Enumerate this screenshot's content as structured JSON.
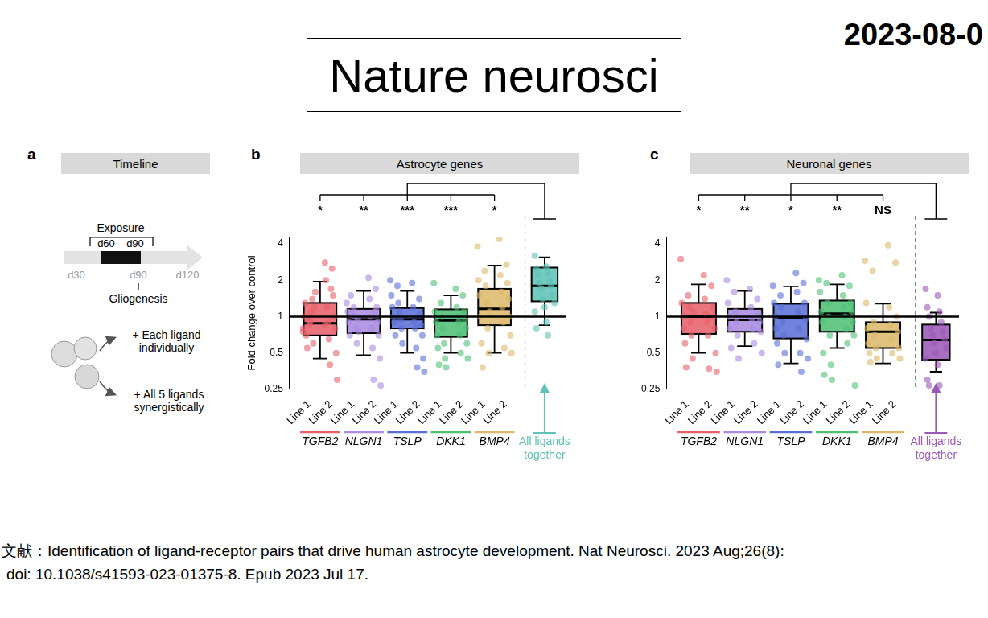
{
  "slide_title": "Nature neurosci",
  "date": "2023-08-0",
  "panel_a": {
    "label": "a",
    "title": "Timeline",
    "exposure": "Exposure",
    "exposure_start": "d60",
    "exposure_end": "d90",
    "axis_labels": [
      "d30",
      "d90",
      "d120"
    ],
    "event": "Gliogenesis",
    "conditions": [
      "+ Each ligand individually",
      "+ All 5 ligands synergistically"
    ]
  },
  "chart_data": [
    {
      "type": "box",
      "panel": "b",
      "title": "Astrocyte genes",
      "y_label": "Fold change over control",
      "log": "y",
      "grid": false,
      "ylim": [
        0.25,
        4.6
      ],
      "yticks": [
        0.25,
        0.5,
        1,
        2,
        4
      ],
      "reference_line": 1,
      "categories": [
        "Line 1",
        "Line 2",
        "Line 1",
        "Line 2",
        "Line 1",
        "Line 2",
        "Line 1",
        "Line 2",
        "Line 1",
        "Line 2",
        null
      ],
      "groups": [
        {
          "name": "TGFB2",
          "color": "#e8606a",
          "significance": "*",
          "box": {
            "whisker_low": 0.45,
            "q1": 0.7,
            "median": 0.88,
            "q3": 1.3,
            "whisker_high": 1.95
          },
          "points": [
            [
              0.8,
              0.9,
              1.0,
              1.1,
              1.3,
              1.4,
              0.7,
              0.6,
              0.55,
              1.2,
              0.95,
              1.6,
              0.85,
              0.75
            ],
            [
              2.8,
              2.5,
              2.0,
              1.5,
              1.2,
              1.0,
              0.9,
              0.8,
              0.65,
              0.5,
              0.4,
              0.3,
              1.7,
              0.85
            ]
          ]
        },
        {
          "name": "NLGN1",
          "color": "#a98be0",
          "significance": "**",
          "box": {
            "whisker_low": 0.48,
            "q1": 0.73,
            "median": 0.95,
            "q3": 1.16,
            "whisker_high": 1.63
          },
          "points": [
            [
              1.3,
              1.2,
              1.1,
              1.0,
              0.9,
              0.8,
              0.7,
              0.6,
              1.5,
              0.95,
              1.05,
              0.75
            ],
            [
              2.1,
              1.7,
              1.4,
              1.2,
              1.0,
              0.9,
              0.8,
              0.7,
              0.55,
              0.45,
              0.3,
              0.27,
              1.1
            ]
          ]
        },
        {
          "name": "TSLP",
          "color": "#5a6fd6",
          "significance": "***",
          "box": {
            "whisker_low": 0.5,
            "q1": 0.8,
            "median": 0.95,
            "q3": 1.18,
            "whisker_high": 1.63
          },
          "points": [
            [
              2.0,
              1.8,
              1.5,
              1.3,
              1.2,
              1.1,
              1.0,
              0.95,
              0.9,
              0.8,
              0.7,
              0.6
            ],
            [
              1.9,
              1.4,
              1.2,
              1.05,
              0.9,
              0.85,
              0.8,
              0.7,
              0.55,
              0.45,
              0.38,
              0.35
            ]
          ]
        },
        {
          "name": "DKK1",
          "color": "#4fbf74",
          "significance": "***",
          "box": {
            "whisker_low": 0.5,
            "q1": 0.68,
            "median": 0.93,
            "q3": 1.15,
            "whisker_high": 1.5
          },
          "points": [
            [
              1.9,
              1.3,
              1.1,
              1.0,
              0.9,
              0.8,
              0.7,
              0.6,
              0.55,
              0.45,
              0.4,
              0.38
            ],
            [
              1.7,
              1.5,
              1.2,
              1.1,
              1.0,
              0.95,
              0.9,
              0.8,
              0.7,
              0.6,
              0.5,
              0.45
            ]
          ]
        },
        {
          "name": "BMP4",
          "color": "#dcb96b",
          "significance": "*",
          "box": {
            "whisker_low": 0.5,
            "q1": 0.85,
            "median": 1.16,
            "q3": 1.7,
            "whisker_high": 2.65
          },
          "points": [
            [
              3.8,
              2.4,
              2.0,
              1.8,
              1.5,
              1.3,
              1.0,
              0.8,
              0.6,
              0.5,
              0.38,
              1.1
            ],
            [
              4.4,
              2.7,
              2.2,
              1.9,
              1.6,
              1.4,
              1.2,
              1.0,
              0.9,
              0.7,
              0.55,
              0.5
            ]
          ]
        },
        {
          "name": "All ligands together",
          "color": "#5fc2b4",
          "box": {
            "whisker_low": 0.85,
            "q1": 1.34,
            "median": 1.8,
            "q3": 2.55,
            "whisker_high": 3.1
          },
          "points": [
            [
              3.2,
              2.6,
              2.5,
              2.3,
              2.2,
              2.0,
              1.9,
              1.8,
              1.7,
              1.5,
              1.4,
              1.3,
              1.2,
              1.1,
              0.9,
              0.8,
              0.7
            ]
          ]
        }
      ]
    },
    {
      "type": "box",
      "panel": "c",
      "title": "Neuronal genes",
      "log": "y",
      "grid": false,
      "ylim": [
        0.25,
        4.6
      ],
      "yticks": [
        0.25,
        0.5,
        1,
        2,
        4
      ],
      "reference_line": 1,
      "categories": [
        "Line 1",
        "Line 2",
        "Line 1",
        "Line 2",
        "Line 1",
        "Line 2",
        "Line 1",
        "Line 2",
        "Line 1",
        "Line 2",
        null
      ],
      "groups": [
        {
          "name": "TGFB2",
          "color": "#e8606a",
          "significance": "*",
          "box": {
            "whisker_low": 0.5,
            "q1": 0.72,
            "median": 1.0,
            "q3": 1.3,
            "whisker_high": 1.85
          },
          "points": [
            [
              3.0,
              1.5,
              1.3,
              1.2,
              1.0,
              0.9,
              0.8,
              0.7,
              0.6,
              0.45,
              0.38,
              1.1
            ],
            [
              2.2,
              1.8,
              1.4,
              1.2,
              1.05,
              1.0,
              0.9,
              0.8,
              0.7,
              0.5,
              0.37,
              0.35
            ]
          ]
        },
        {
          "name": "NLGN1",
          "color": "#a98be0",
          "significance": "**",
          "box": {
            "whisker_low": 0.57,
            "q1": 0.75,
            "median": 0.94,
            "q3": 1.16,
            "whisker_high": 1.63
          },
          "points": [
            [
              2.0,
              1.6,
              1.3,
              1.1,
              1.0,
              0.9,
              0.8,
              0.7,
              0.55,
              0.45
            ],
            [
              1.7,
              1.4,
              1.2,
              1.05,
              0.95,
              0.9,
              0.8,
              0.75,
              0.6,
              0.5
            ]
          ]
        },
        {
          "name": "TSLP",
          "color": "#5a6fd6",
          "significance": "*",
          "box": {
            "whisker_low": 0.41,
            "q1": 0.66,
            "median": 0.97,
            "q3": 1.28,
            "whisker_high": 1.78
          },
          "points": [
            [
              1.8,
              1.5,
              1.3,
              1.2,
              1.0,
              0.9,
              0.8,
              0.7,
              0.6,
              0.5,
              0.4
            ],
            [
              2.3,
              1.9,
              1.6,
              1.3,
              1.1,
              0.95,
              0.8,
              0.65,
              0.5,
              0.45,
              0.35
            ]
          ]
        },
        {
          "name": "DKK1",
          "color": "#4fbf74",
          "significance": "**",
          "box": {
            "whisker_low": 0.55,
            "q1": 0.75,
            "median": 1.06,
            "q3": 1.36,
            "whisker_high": 1.85
          },
          "points": [
            [
              2.0,
              1.9,
              1.6,
              1.3,
              1.1,
              1.0,
              0.9,
              0.7,
              0.5,
              0.4,
              0.33,
              0.3
            ],
            [
              2.2,
              1.8,
              1.5,
              1.3,
              1.2,
              1.1,
              1.0,
              0.9,
              0.8,
              0.7,
              0.6,
              0.27
            ]
          ]
        },
        {
          "name": "BMP4",
          "color": "#dcb96b",
          "significance": "NS",
          "box": {
            "whisker_low": 0.41,
            "q1": 0.55,
            "median": 0.75,
            "q3": 0.9,
            "whisker_high": 1.28
          },
          "points": [
            [
              2.9,
              2.4,
              1.3,
              0.9,
              0.8,
              0.7,
              0.6,
              0.55,
              0.5,
              0.45,
              0.42
            ],
            [
              3.9,
              2.8,
              1.2,
              1.0,
              0.85,
              0.75,
              0.65,
              0.55,
              0.5,
              0.45
            ]
          ]
        },
        {
          "name": "All ligands together",
          "color": "#9b58b5",
          "box": {
            "whisker_low": 0.35,
            "q1": 0.44,
            "median": 0.64,
            "q3": 0.86,
            "whisker_high": 1.08
          },
          "points": [
            [
              1.7,
              1.5,
              1.2,
              1.1,
              1.0,
              0.9,
              0.8,
              0.75,
              0.7,
              0.65,
              0.6,
              0.55,
              0.5,
              0.45,
              0.4,
              0.3,
              0.27,
              0.27
            ]
          ]
        }
      ]
    }
  ],
  "citation": [
    "文献：Identification of ligand-receptor pairs that drive human astrocyte development. Nat Neurosci. 2023 Aug;26(8):",
    "doi: 10.1038/s41593-023-01375-8. Epub 2023 Jul 17."
  ]
}
